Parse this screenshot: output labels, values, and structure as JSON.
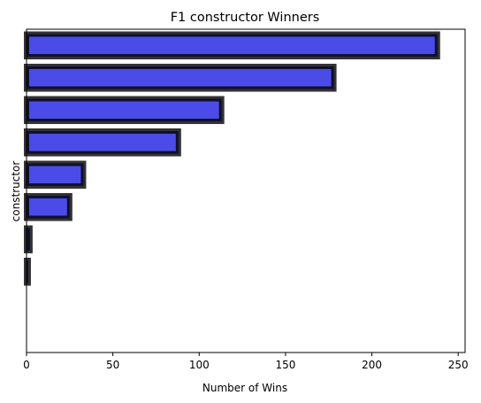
{
  "chart_data": {
    "type": "bar",
    "orientation": "horizontal",
    "title": "F1 constructor Winners",
    "xlabel": "Number of Wins",
    "ylabel": "constructor",
    "values": [
      238,
      178,
      113,
      88,
      33,
      25,
      2,
      1,
      0,
      0
    ],
    "xlim": [
      0,
      254
    ],
    "xticks": [
      0,
      50,
      100,
      150,
      200,
      250
    ],
    "grid": false,
    "bar_color": "#4b4be8",
    "edge_color": "#000000"
  }
}
